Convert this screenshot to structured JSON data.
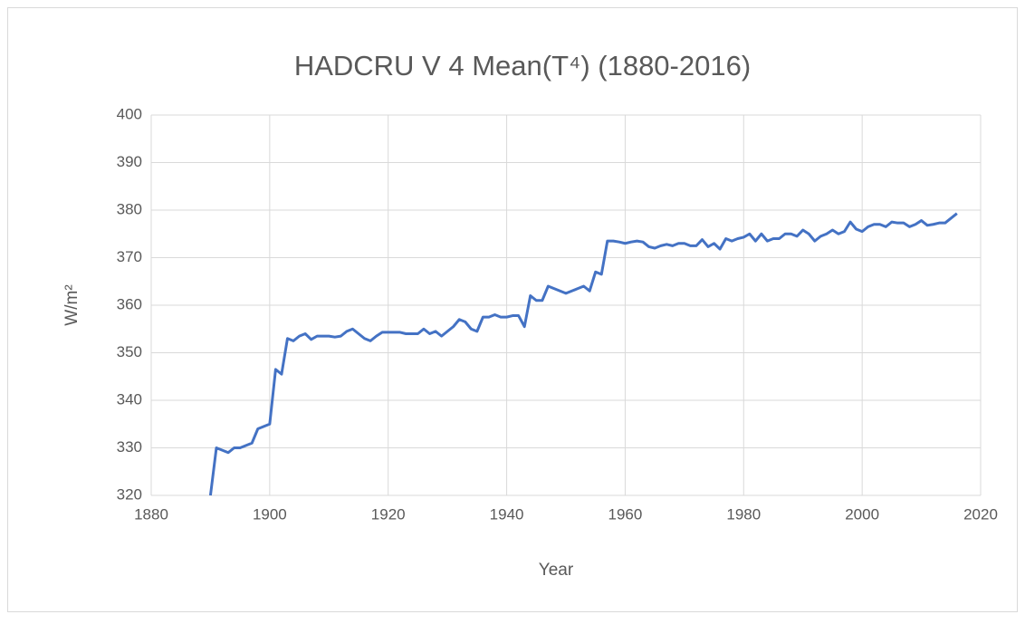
{
  "chart_data": {
    "type": "line",
    "title": "HADCRU V 4 Mean(T⁴) (1880-2016)",
    "x_label": "Year",
    "y_label": "W/m²",
    "x": [
      1890,
      1891,
      1892,
      1893,
      1894,
      1895,
      1896,
      1897,
      1898,
      1899,
      1900,
      1901,
      1902,
      1903,
      1904,
      1905,
      1906,
      1907,
      1908,
      1909,
      1910,
      1911,
      1912,
      1913,
      1914,
      1915,
      1916,
      1917,
      1918,
      1919,
      1920,
      1921,
      1922,
      1923,
      1924,
      1925,
      1926,
      1927,
      1928,
      1929,
      1930,
      1931,
      1932,
      1933,
      1934,
      1935,
      1936,
      1937,
      1938,
      1939,
      1940,
      1941,
      1942,
      1943,
      1944,
      1945,
      1946,
      1947,
      1948,
      1949,
      1950,
      1951,
      1952,
      1953,
      1954,
      1955,
      1956,
      1957,
      1958,
      1959,
      1960,
      1961,
      1962,
      1963,
      1964,
      1965,
      1966,
      1967,
      1968,
      1969,
      1970,
      1971,
      1972,
      1973,
      1974,
      1975,
      1976,
      1977,
      1978,
      1979,
      1980,
      1981,
      1982,
      1983,
      1984,
      1985,
      1986,
      1987,
      1988,
      1989,
      1990,
      1991,
      1992,
      1993,
      1994,
      1995,
      1996,
      1997,
      1998,
      1999,
      2000,
      2001,
      2002,
      2003,
      2004,
      2005,
      2006,
      2007,
      2008,
      2009,
      2010,
      2011,
      2012,
      2013,
      2014,
      2015,
      2016
    ],
    "series": [
      {
        "color": "#4472c4",
        "values": [
          320,
          330,
          329.5,
          329,
          330,
          330,
          330.5,
          331,
          334,
          334.5,
          335,
          346.5,
          345.5,
          353,
          352.5,
          353.5,
          354,
          352.8,
          353.5,
          353.5,
          353.5,
          353.3,
          353.5,
          354.5,
          355,
          354,
          353,
          352.5,
          353.5,
          354.3,
          354.3,
          354.3,
          354.3,
          354,
          354,
          354,
          355,
          354,
          354.5,
          353.5,
          354.5,
          355.5,
          357,
          356.5,
          355,
          354.5,
          357.5,
          357.5,
          358,
          357.5,
          357.5,
          357.8,
          357.8,
          355.5,
          362,
          361,
          361,
          364,
          363.5,
          363,
          362.5,
          363,
          363.5,
          364,
          363,
          367,
          366.5,
          373.5,
          373.5,
          373.3,
          373,
          373.3,
          373.5,
          373.3,
          372.3,
          372,
          372.5,
          372.8,
          372.5,
          373,
          373,
          372.5,
          372.5,
          373.8,
          372.3,
          373,
          371.8,
          374,
          373.5,
          374,
          374.3,
          375,
          373.5,
          375,
          373.5,
          374,
          374,
          375,
          375,
          374.5,
          375.8,
          375,
          373.5,
          374.5,
          375,
          375.8,
          375,
          375.5,
          377.5,
          376,
          375.5,
          376.5,
          377,
          377,
          376.5,
          377.5,
          377.3,
          377.3,
          376.5,
          377,
          377.8,
          376.8,
          377,
          377.3,
          377.3,
          378.3,
          379.3
        ]
      }
    ],
    "xlim": [
      1880,
      2020
    ],
    "xticks": [
      1880,
      1900,
      1920,
      1940,
      1960,
      1980,
      2000,
      2020
    ],
    "ylim": [
      320,
      400
    ],
    "yticks": [
      320,
      330,
      340,
      350,
      360,
      370,
      380,
      390,
      400
    ],
    "grid": true
  }
}
